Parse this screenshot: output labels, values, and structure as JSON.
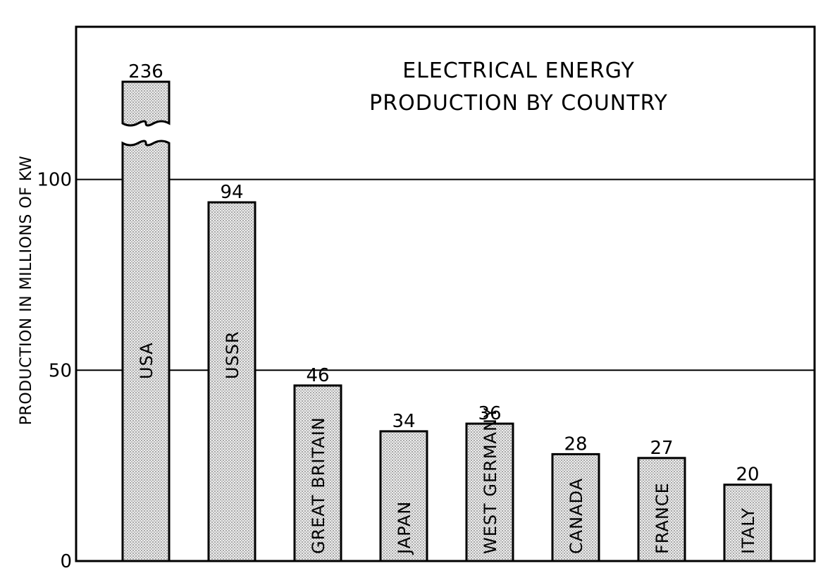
{
  "chart_data": {
    "type": "bar",
    "title_lines": [
      "ELECTRICAL ENERGY",
      "PRODUCTION BY COUNTRY"
    ],
    "ylabel": "PRODUCTION IN MILLIONS OF KW",
    "ylim": [
      0,
      140
    ],
    "yticks": [
      0,
      50,
      100
    ],
    "grid": true,
    "categories": [
      "USA",
      "USSR",
      "GREAT BRITAIN",
      "JAPAN",
      "WEST GERMANY",
      "CANADA",
      "FRANCE",
      "ITALY"
    ],
    "values": [
      236,
      94,
      46,
      34,
      36,
      28,
      27,
      20
    ],
    "value_labels": [
      "236",
      "94",
      "46",
      "34",
      "36",
      "28",
      "27",
      "20"
    ],
    "axis_break": {
      "category": "USA",
      "note": "bar broken to fit scale"
    }
  }
}
